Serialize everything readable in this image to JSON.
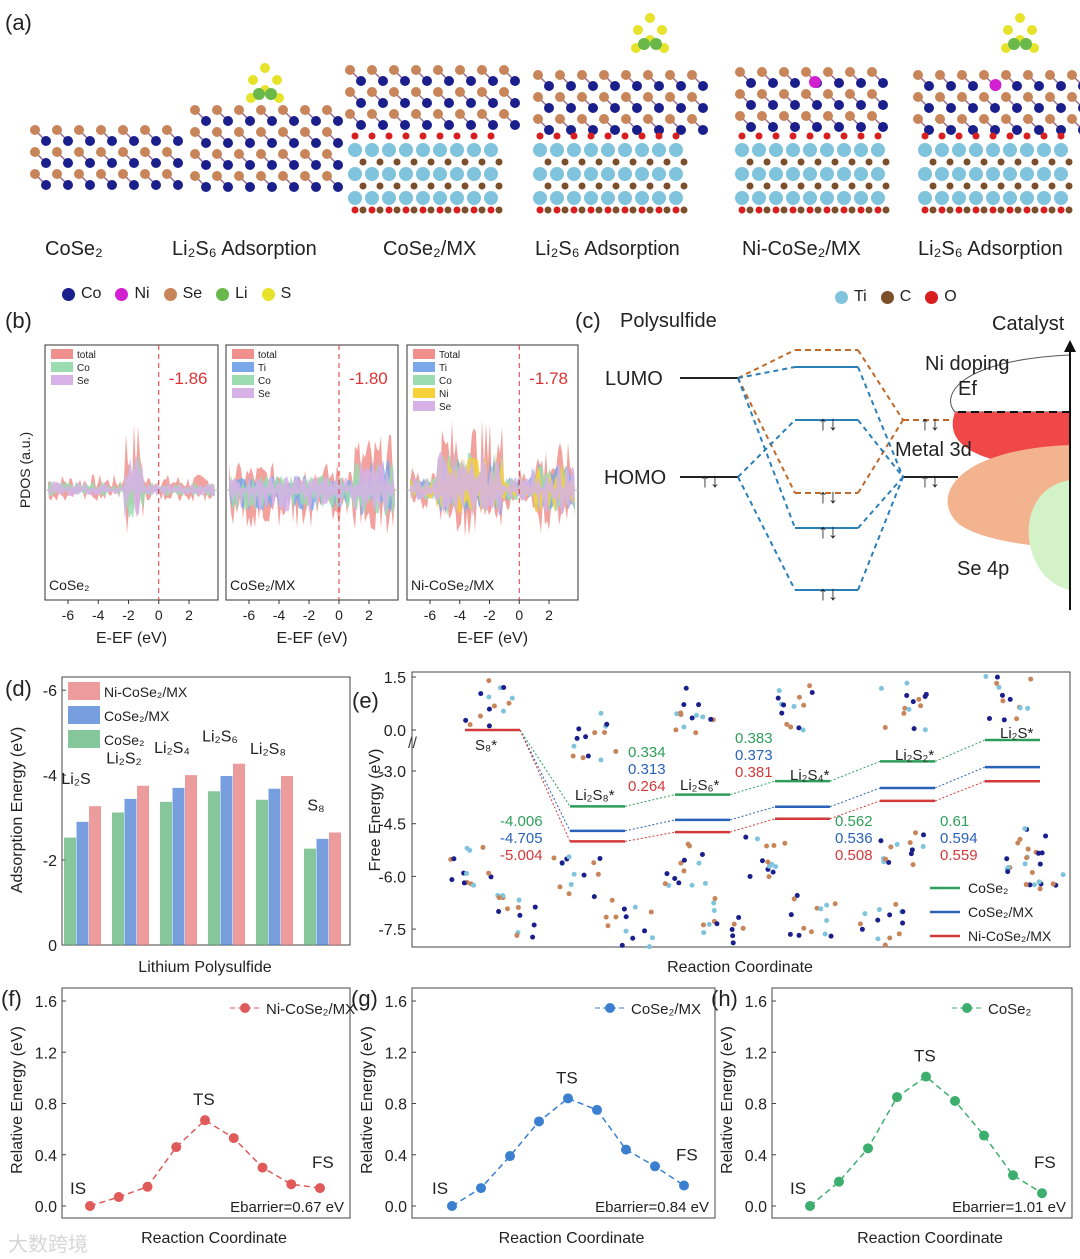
{
  "panel_labels": {
    "a": "(a)",
    "b": "(b)",
    "c": "(c)",
    "d": "(d)",
    "e": "(e)",
    "f": "(f)",
    "g": "(g)",
    "h": "(h)"
  },
  "panel_a": {
    "structures": [
      "CoSe₂",
      "Li₂S₆ Adsorption",
      "CoSe₂/MX",
      "Li₂S₆ Adsorption",
      "Ni-CoSe₂/MX",
      "Li₂S₆ Adsorption"
    ],
    "legend_left": [
      {
        "label": "Co",
        "color": "#1a1f8c"
      },
      {
        "label": "Ni",
        "color": "#d21fd0"
      },
      {
        "label": "Se",
        "color": "#c9855a"
      },
      {
        "label": "Li",
        "color": "#6ab84a"
      },
      {
        "label": "S",
        "color": "#e6e32a"
      }
    ],
    "legend_right": [
      {
        "label": "Ti",
        "color": "#7fc4dc"
      },
      {
        "label": "C",
        "color": "#7a4f2a"
      },
      {
        "label": "O",
        "color": "#d81e1e"
      }
    ]
  },
  "chart_data": [
    {
      "id": "b",
      "type": "area",
      "ylabel": "PDOS (a.u.)",
      "xlabel": "E-EF (eV)",
      "xticks": [
        -6,
        -4,
        -2,
        0,
        2
      ],
      "panels": [
        {
          "name": "CoSe₂",
          "legend": [
            "total",
            "Co",
            "Se"
          ],
          "fermi_annotation": "-1.86"
        },
        {
          "name": "CoSe₂/MX",
          "legend": [
            "total",
            "Ti",
            "Co",
            "Se"
          ],
          "fermi_annotation": "-1.80"
        },
        {
          "name": "Ni-CoSe₂/MX",
          "legend": [
            "Total",
            "Ti",
            "Co",
            "Ni",
            "Se"
          ],
          "fermi_annotation": "-1.78"
        }
      ],
      "colors": {
        "total": "#f0908c",
        "Ti": "#7aa8ea",
        "Co": "#9bdcb0",
        "Ni": "#f5d23a",
        "Se": "#d6b2e6"
      }
    },
    {
      "id": "c",
      "type": "diagram",
      "left_title": "Polysulfide",
      "right_title": "Catalyst",
      "labels": {
        "lumo": "LUMO",
        "homo": "HOMO",
        "ni": "Ni doping",
        "ef": "Ef",
        "metal": "Metal 3d",
        "se": "Se 4p"
      }
    },
    {
      "id": "d",
      "type": "bar",
      "xlabel": "Lithium Polysulfide",
      "ylabel": "Adsorption Energy (eV)",
      "ylim": [
        0,
        -6.5
      ],
      "yticks": [
        0,
        -2,
        -4,
        -6
      ],
      "categories": [
        "Li₂S",
        "Li₂S₂",
        "Li₂S₄",
        "Li₂S₆",
        "Li₂S₈",
        "S₈"
      ],
      "series": [
        {
          "name": "CoSe₂",
          "color": "#5cb37a",
          "values": [
            -2.53,
            -3.12,
            -3.37,
            -3.62,
            -3.42,
            -2.27
          ]
        },
        {
          "name": "CoSe₂/MX",
          "color": "#4a7fd6",
          "values": [
            -2.9,
            -3.44,
            -3.7,
            -3.98,
            -3.68,
            -2.5
          ]
        },
        {
          "name": "Ni-CoSe₂/MX",
          "color": "#e57b7b",
          "values": [
            -3.27,
            -3.75,
            -4.0,
            -4.27,
            -3.98,
            -2.65
          ]
        }
      ]
    },
    {
      "id": "e",
      "type": "line",
      "xlabel": "Reaction Coordinate",
      "ylabel": "Free Energy (eV)",
      "yticks": [
        "1.5",
        "0.0",
        "-3.0",
        "-4.5",
        "-6.0",
        "-7.5"
      ],
      "categories": [
        "S₈*",
        "Li₂S₈*",
        "Li₂S₆*",
        "Li₂S₄*",
        "Li₂S₂*",
        "Li₂S*"
      ],
      "series": [
        {
          "name": "CoSe₂",
          "color": "#2f9e5b",
          "values": [
            0,
            -4.006,
            -3.672,
            -3.289,
            -2.727,
            -2.117
          ]
        },
        {
          "name": "CoSe₂/MX",
          "color": "#2a62b8",
          "values": [
            0,
            -4.705,
            -4.392,
            -4.019,
            -3.483,
            -2.889
          ]
        },
        {
          "name": "Ni-CoSe₂/MX",
          "color": "#d23a3a",
          "values": [
            0,
            -5.004,
            -4.74,
            -4.359,
            -3.851,
            -3.292
          ]
        }
      ],
      "annotations": [
        {
          "values": [
            "-4.006",
            "-4.705",
            "-5.004"
          ]
        },
        {
          "values": [
            "0.334",
            "0.313",
            "0.264"
          ]
        },
        {
          "values": [
            "0.383",
            "0.373",
            "0.381"
          ]
        },
        {
          "values": [
            "0.562",
            "0.536",
            "0.508"
          ]
        },
        {
          "values": [
            "0.61",
            "0.594",
            "0.559"
          ]
        }
      ]
    },
    {
      "id": "f",
      "type": "line",
      "series_name": "Ni-CoSe₂/MX",
      "color": "#e05a5a",
      "xlabel": "Reaction Coordinate",
      "ylabel": "Relative Energy (eV)",
      "ylim": [
        0,
        1.6
      ],
      "yticks": [
        "0.0",
        "0.4",
        "0.8",
        "1.2",
        "1.6"
      ],
      "values": [
        0,
        0.07,
        0.15,
        0.46,
        0.67,
        0.53,
        0.3,
        0.17,
        0.14
      ],
      "labels": {
        "is": "IS",
        "ts": "TS",
        "fs": "FS"
      },
      "barrier": "Ebarrier=0.67 eV"
    },
    {
      "id": "g",
      "type": "line",
      "series_name": "CoSe₂/MX",
      "color": "#3a7fd0",
      "xlabel": "Reaction Coordinate",
      "ylabel": "Relative Energy (eV)",
      "ylim": [
        0,
        1.6
      ],
      "yticks": [
        "0.0",
        "0.4",
        "0.8",
        "1.2",
        "1.6"
      ],
      "values": [
        0,
        0.14,
        0.39,
        0.66,
        0.84,
        0.75,
        0.44,
        0.31,
        0.16
      ],
      "labels": {
        "is": "IS",
        "ts": "TS",
        "fs": "FS"
      },
      "barrier": "Ebarrier=0.84 eV"
    },
    {
      "id": "h",
      "type": "line",
      "series_name": "CoSe₂",
      "color": "#3cae6e",
      "xlabel": "Reaction Coordinate",
      "ylabel": "Relative Energy (eV)",
      "ylim": [
        0,
        1.6
      ],
      "yticks": [
        "0.0",
        "0.4",
        "0.8",
        "1.2",
        "1.6"
      ],
      "values": [
        0,
        0.19,
        0.45,
        0.85,
        1.01,
        0.82,
        0.55,
        0.24,
        0.1
      ],
      "labels": {
        "is": "IS",
        "ts": "TS",
        "fs": "FS"
      },
      "barrier": "Ebarrier=1.01 eV"
    }
  ],
  "watermark": "大数跨境"
}
